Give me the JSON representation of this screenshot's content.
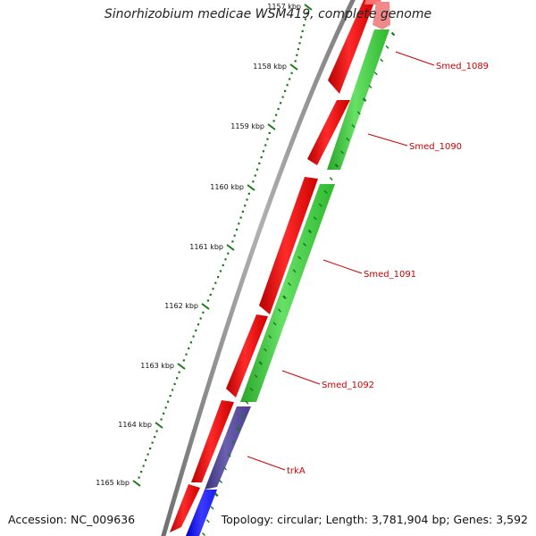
{
  "title": "Sinorhizobium medicae WSM419, complete genome",
  "footer": {
    "accession": "Accession: NC_009636",
    "topology": "Topology: circular; Length: 3,781,904 bp; Genes: 3,592"
  },
  "colors": {
    "backbone": "#8a8a8a",
    "forward_cds": "#ee0000",
    "reverse_cds": "#33cc33",
    "ticks": "#1a7a1a",
    "gene_label": "#cc0000",
    "trkA_cds": "#4a3f8c",
    "blue_cds": "#1a1aee"
  },
  "ruler": {
    "unit": "kbp",
    "ticks": [
      {
        "kbp": 1157,
        "label": "1157 kbp"
      },
      {
        "kbp": 1158,
        "label": "1158 kbp"
      },
      {
        "kbp": 1159,
        "label": "1159 kbp"
      },
      {
        "kbp": 1160,
        "label": "1160 kbp"
      },
      {
        "kbp": 1161,
        "label": "1161 kbp"
      },
      {
        "kbp": 1162,
        "label": "1162 kbp"
      },
      {
        "kbp": 1163,
        "label": "1163 kbp"
      },
      {
        "kbp": 1164,
        "label": "1164 kbp"
      },
      {
        "kbp": 1165,
        "label": "1165 kbp"
      }
    ]
  },
  "genes": [
    {
      "name": "Smed_1089",
      "strand": "reverse"
    },
    {
      "name": "Smed_1090",
      "strand": "reverse"
    },
    {
      "name": "Smed_1091",
      "strand": "reverse"
    },
    {
      "name": "Smed_1092",
      "strand": "reverse"
    },
    {
      "name": "trkA",
      "strand": "reverse"
    }
  ]
}
